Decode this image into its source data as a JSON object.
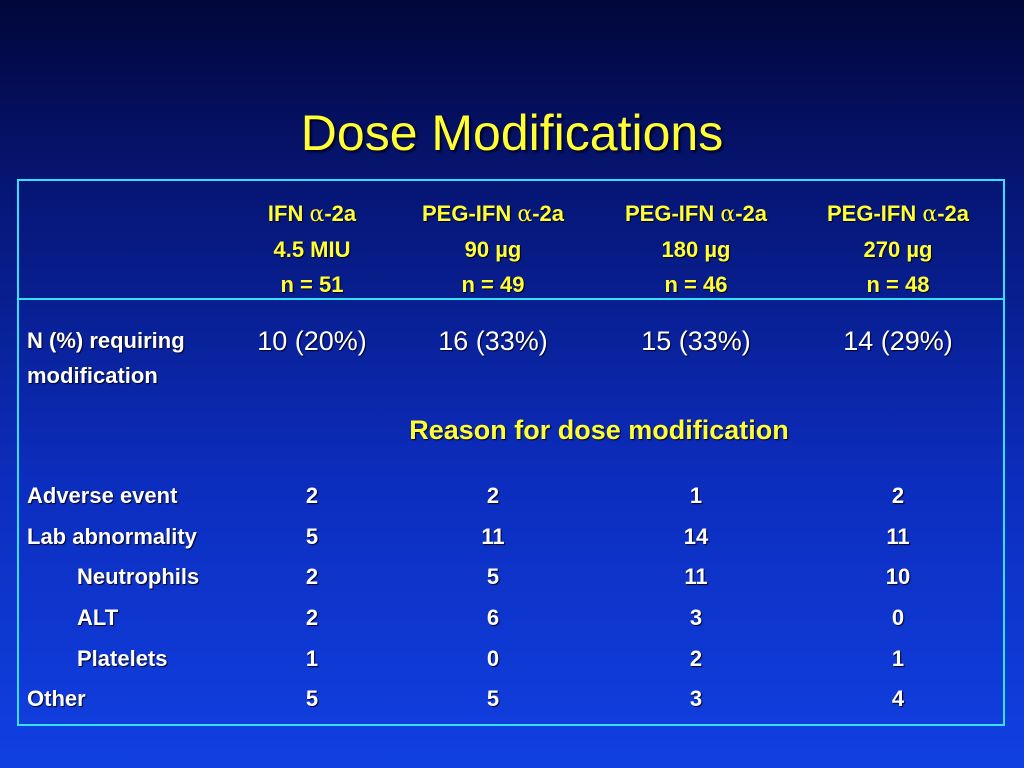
{
  "title": "Dose Modifications",
  "columns": [
    {
      "drug_prefix": "IFN ",
      "alpha": "α",
      "drug_suffix": "-2a",
      "dose": "4.5 MIU",
      "n": "n = 51"
    },
    {
      "drug_prefix": "PEG-IFN ",
      "alpha": "α",
      "drug_suffix": "-2a",
      "dose": "90 µg",
      "n": "n = 49"
    },
    {
      "drug_prefix": "PEG-IFN ",
      "alpha": "α",
      "drug_suffix": "-2a",
      "dose": "180 µg",
      "n": "n = 46"
    },
    {
      "drug_prefix": "PEG-IFN ",
      "alpha": "α",
      "drug_suffix": "-2a",
      "dose": "270 µg",
      "n": "n = 48"
    }
  ],
  "requiring": {
    "label_line1": "N (%) requiring",
    "label_line2": "modification",
    "values": [
      "10 (20%)",
      "16 (33%)",
      "15 (33%)",
      "14 (29%)"
    ]
  },
  "reason_heading": "Reason for dose modification",
  "rows": [
    {
      "label": "Adverse event",
      "values": [
        "2",
        "2",
        "1",
        "2"
      ]
    },
    {
      "label": "Lab abnormality",
      "values": [
        "5",
        "11",
        "14",
        "11"
      ]
    },
    {
      "label": "Neutrophils",
      "values": [
        "2",
        "5",
        "11",
        "10"
      ]
    },
    {
      "label": "ALT",
      "values": [
        "2",
        "6",
        "3",
        "0"
      ]
    },
    {
      "label": "Platelets",
      "values": [
        "1",
        "0",
        "2",
        "1"
      ]
    },
    {
      "label": "Other",
      "values": [
        "5",
        "5",
        "3",
        "4"
      ]
    }
  ],
  "colors": {
    "title": "#ffff33",
    "border": "#33e0ff",
    "text": "#ffffff",
    "background_top": "#02063a",
    "background_bottom": "#1140e2"
  }
}
